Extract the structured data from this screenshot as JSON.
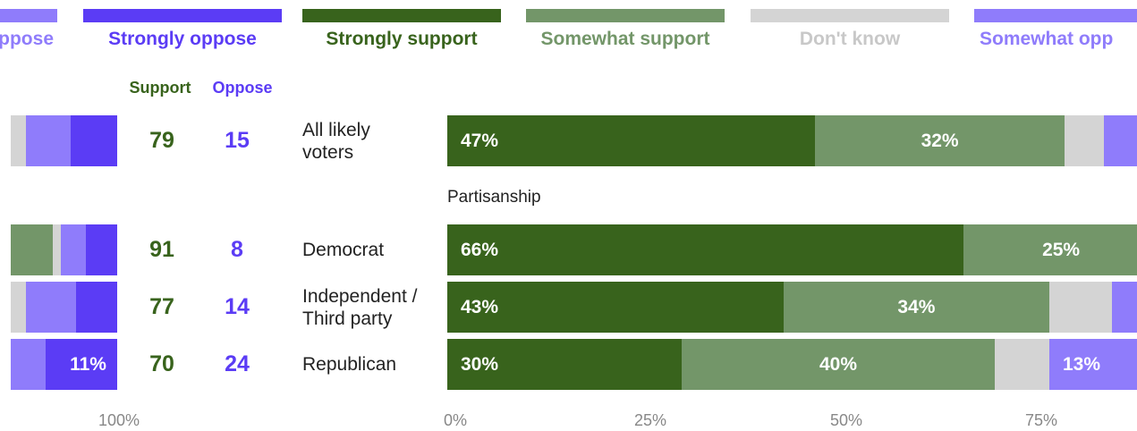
{
  "chart_data": {
    "type": "bar",
    "orientation": "horizontal-stacked",
    "legend": [
      {
        "key": "somewhat_oppose_left",
        "label": "oppose",
        "color": "#8F7CFB"
      },
      {
        "key": "strongly_oppose",
        "label": "Strongly oppose",
        "color": "#5B3CF5"
      },
      {
        "key": "strongly_support",
        "label": "Strongly support",
        "color": "#38631C"
      },
      {
        "key": "somewhat_support",
        "label": "Somewhat support",
        "color": "#739669"
      },
      {
        "key": "dont_know",
        "label": "Don't know",
        "color": "#D4D4D4"
      },
      {
        "key": "somewhat_oppose",
        "label": "Somewhat opp",
        "color": "#8F7CFB"
      }
    ],
    "headers": {
      "support": "Support",
      "oppose": "Oppose"
    },
    "section_label": "Partisanship",
    "x_ticks": [
      "100%",
      "0%",
      "25%",
      "50%",
      "75%"
    ],
    "xlim": [
      0,
      100
    ],
    "rows": [
      {
        "label_lines": [
          "All likely",
          "voters"
        ],
        "support": "79",
        "oppose": "15",
        "strongly_support": 47,
        "somewhat_support": 32,
        "dont_know": 5,
        "somewhat_oppose": 9,
        "strongly_oppose": 6,
        "ss_label": "47%",
        "sws_label": "32%",
        "so_label": ""
      },
      {
        "label_lines": [
          "Democrat"
        ],
        "support": "91",
        "oppose": "8",
        "strongly_support": 66,
        "somewhat_support": 25,
        "dont_know": 2,
        "somewhat_oppose": 5,
        "strongly_oppose": 3,
        "ss_label": "66%",
        "sws_label": "25%",
        "so_label": ""
      },
      {
        "label_lines": [
          "Independent /",
          "Third party"
        ],
        "support": "77",
        "oppose": "14",
        "strongly_support": 43,
        "somewhat_support": 34,
        "dont_know": 8,
        "somewhat_oppose": 10,
        "strongly_oppose": 5,
        "ss_label": "43%",
        "sws_label": "34%",
        "so_label": ""
      },
      {
        "label_lines": [
          "Republican"
        ],
        "support": "70",
        "oppose": "24",
        "strongly_support": 30,
        "somewhat_support": 40,
        "dont_know": 7,
        "somewhat_oppose": 13,
        "strongly_oppose": 11,
        "ss_label": "30%",
        "sws_label": "40%",
        "so_label": "13%",
        "strong_oppose_label": "11%"
      }
    ]
  }
}
